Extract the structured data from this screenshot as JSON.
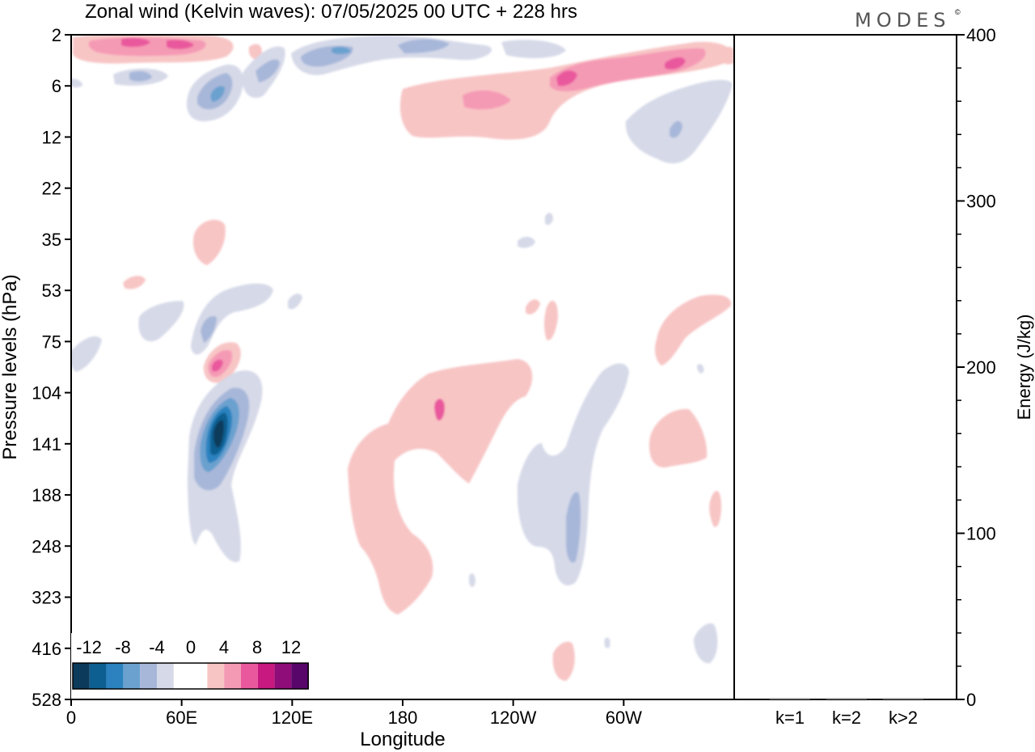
{
  "title": "Zonal wind (Kelvin waves):  07/05/2025  00 UTC  + 228 hrs",
  "logo": "MODES",
  "logo_mark": "©",
  "chart_data": [
    {
      "type": "heatmap",
      "title": "Zonal wind (Kelvin waves):  07/05/2025  00 UTC  + 228 hrs",
      "xlabel": "Longitude",
      "ylabel": "Pressure levels (hPa)",
      "x_ticks": [
        "0",
        "60E",
        "120E",
        "180",
        "120W",
        "60W"
      ],
      "x_tick_degrees": [
        0,
        60,
        120,
        180,
        240,
        300
      ],
      "xlim": [
        0,
        360
      ],
      "y_ticks": [
        "2",
        "6",
        "12",
        "22",
        "35",
        "53",
        "75",
        "104",
        "141",
        "188",
        "248",
        "323",
        "416",
        "528"
      ],
      "colorbar": {
        "labels": [
          "-12",
          "-8",
          "-4",
          "0",
          "4",
          "8",
          "12"
        ],
        "colors": [
          "#0b3a5a",
          "#0e5f91",
          "#2b82bf",
          "#6aa1cf",
          "#a7b7d9",
          "#d6d9e8",
          "#ffffff",
          "#ffffff",
          "#f8c5c5",
          "#f59ab5",
          "#e9589d",
          "#c7197f",
          "#8e0d78",
          "#58066a"
        ]
      },
      "features": [
        {
          "sign": "negative",
          "lon": 78,
          "level": "141",
          "min": -12
        },
        {
          "sign": "positive",
          "lon": 75,
          "level": "75",
          "max": 8
        },
        {
          "sign": "positive",
          "lon": 265,
          "level": "6",
          "max": 8
        },
        {
          "sign": "positive",
          "lon": 185,
          "level": "188",
          "max": 4
        },
        {
          "sign": "negative",
          "lon": 257,
          "level": "248",
          "min": -6
        }
      ]
    },
    {
      "type": "bar",
      "categories": [
        "k=1",
        "k=2",
        "k>2"
      ],
      "values": [
        0,
        0,
        0
      ],
      "ylabel": "Energy (J/kg)",
      "ylim": [
        0,
        400
      ],
      "y_ticks": [
        "0",
        "100",
        "200",
        "300",
        "400"
      ]
    }
  ]
}
